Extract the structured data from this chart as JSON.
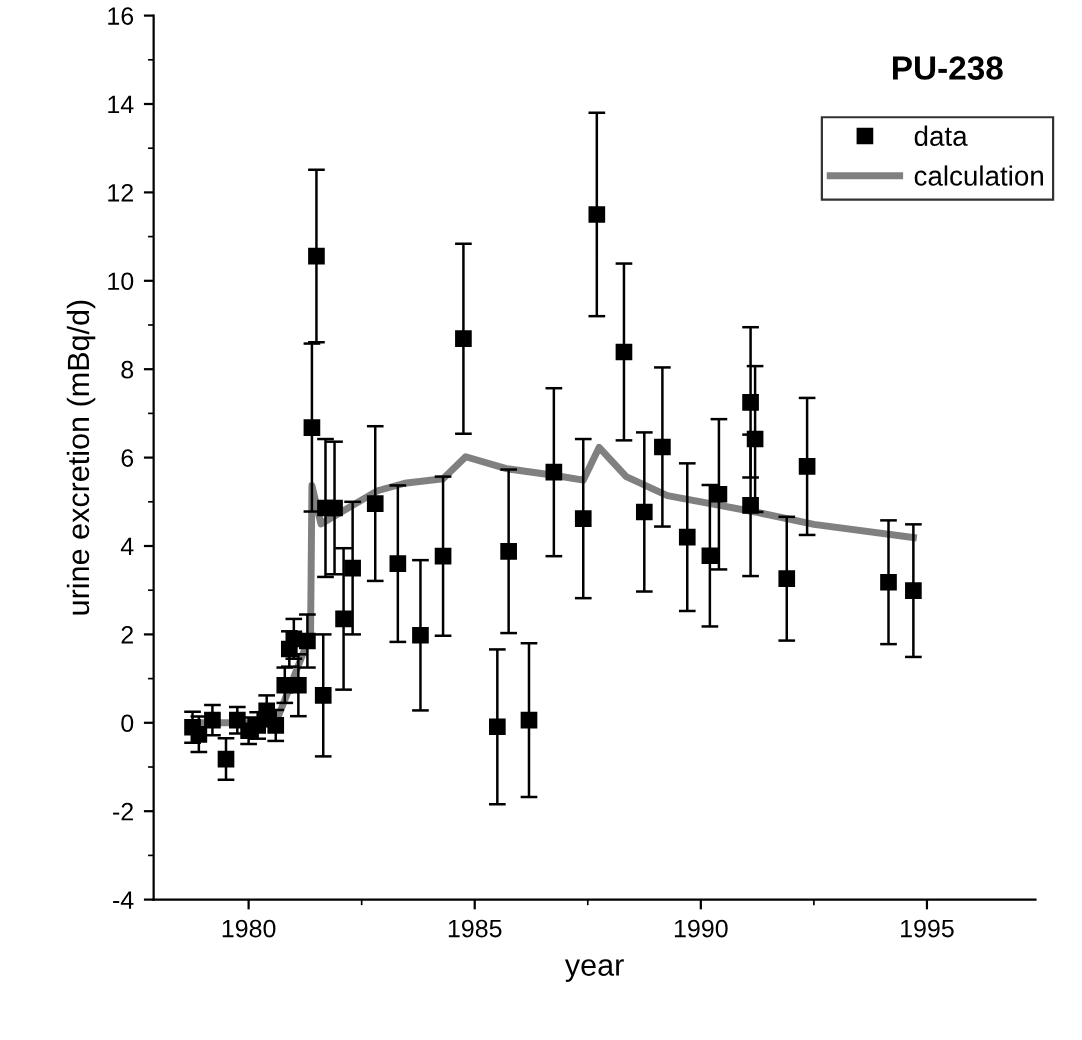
{
  "chart_data": {
    "type": "scatter",
    "title": "PU-238",
    "xlabel": "year",
    "ylabel": "urine excretion (mBq/d)",
    "xlim": [
      1977.9,
      1997.4
    ],
    "ylim": [
      -4,
      16
    ],
    "xticks": [
      1980,
      1985,
      1990,
      1995
    ],
    "yticks": [
      -4,
      -2,
      0,
      2,
      4,
      6,
      8,
      10,
      12,
      14,
      16
    ],
    "grid": false,
    "legend": "top right",
    "series": [
      {
        "name": "data",
        "marker": "square",
        "color": "#000000",
        "x": [
          1978.76,
          1978.9,
          1979.2,
          1979.5,
          1979.75,
          1980.0,
          1980.2,
          1980.4,
          1980.6,
          1980.8,
          1980.9,
          1981.0,
          1981.1,
          1981.3,
          1981.4,
          1981.5,
          1981.65,
          1981.7,
          1981.9,
          1982.1,
          1982.3,
          1982.8,
          1983.3,
          1983.8,
          1984.3,
          1984.75,
          1985.5,
          1985.75,
          1986.2,
          1986.75,
          1987.4,
          1987.7,
          1988.3,
          1988.75,
          1989.15,
          1989.7,
          1990.2,
          1990.4,
          1991.1,
          1991.1,
          1991.2,
          1991.9,
          1992.35,
          1994.15,
          1994.7
        ],
        "values": [
          -0.1,
          -0.26,
          0.06,
          -0.82,
          0.06,
          -0.18,
          -0.06,
          0.27,
          -0.06,
          0.85,
          1.67,
          1.9,
          0.85,
          1.85,
          6.68,
          10.56,
          0.62,
          4.86,
          4.86,
          2.35,
          3.5,
          4.96,
          3.6,
          1.98,
          3.77,
          8.69,
          -0.09,
          3.88,
          0.06,
          5.67,
          4.62,
          11.5,
          8.39,
          4.77,
          6.24,
          4.2,
          3.78,
          5.17,
          7.25,
          4.92,
          6.42,
          3.26,
          5.8,
          3.18,
          2.99
        ],
        "errors": [
          0.35,
          0.4,
          0.34,
          0.47,
          0.3,
          0.3,
          0.3,
          0.35,
          0.35,
          0.4,
          0.4,
          0.45,
          0.7,
          0.6,
          1.9,
          1.95,
          1.38,
          1.56,
          1.5,
          1.6,
          1.5,
          1.75,
          1.77,
          1.7,
          1.8,
          2.15,
          1.75,
          1.85,
          1.74,
          1.9,
          1.8,
          2.3,
          2.0,
          1.8,
          1.8,
          1.67,
          1.6,
          1.7,
          1.7,
          1.6,
          1.65,
          1.4,
          1.55,
          1.4,
          1.5
        ]
      },
      {
        "name": "calculation",
        "type": "line",
        "color": "#808080",
        "x": [
          1978.75,
          1980.6,
          1981.37,
          1981.4,
          1981.6,
          1982.85,
          1983.45,
          1984.3,
          1984.8,
          1985.7,
          1986.75,
          1987.4,
          1987.75,
          1988.35,
          1989.26,
          1991.2,
          1992.5,
          1994.7
        ],
        "values": [
          0,
          0,
          2.0,
          5.37,
          4.5,
          5.25,
          5.42,
          5.52,
          6.02,
          5.75,
          5.6,
          5.49,
          6.23,
          5.57,
          5.14,
          4.77,
          4.49,
          4.19
        ]
      }
    ]
  }
}
